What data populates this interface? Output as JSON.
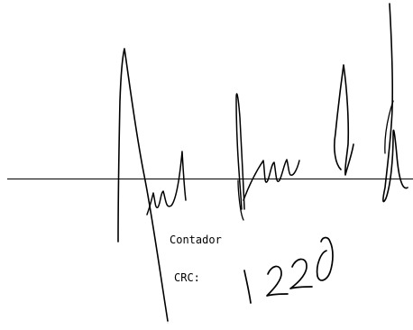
{
  "document": {
    "role_label": "Contador",
    "crc_label": "CRC:",
    "crc_number_handwritten": "1220",
    "signature": "handwritten-signature",
    "ink_color": "#000000",
    "paper_color": "#ffffff"
  }
}
